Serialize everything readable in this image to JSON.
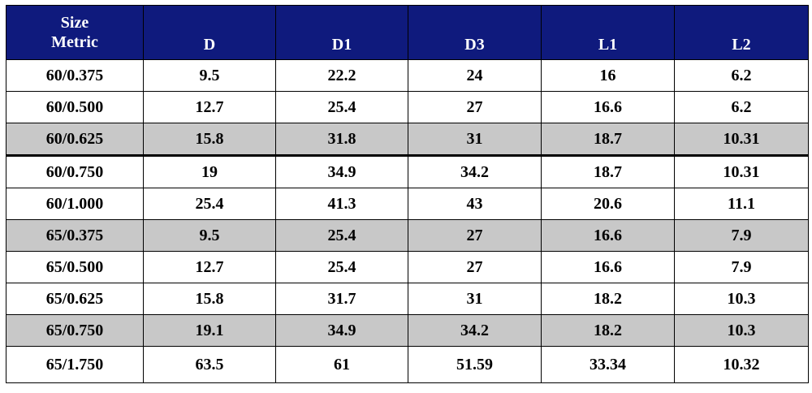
{
  "table": {
    "headers": [
      {
        "lines": [
          "Size",
          "Metric"
        ]
      },
      {
        "lines": [
          "D"
        ]
      },
      {
        "lines": [
          "D1"
        ]
      },
      {
        "lines": [
          "D3"
        ]
      },
      {
        "lines": [
          "L1"
        ]
      },
      {
        "lines": [
          "L2"
        ]
      }
    ],
    "rows": [
      {
        "cells": [
          "60/0.375",
          "9.5",
          "22.2",
          "24",
          "16",
          "6.2"
        ],
        "shaded": false
      },
      {
        "cells": [
          "60/0.500",
          "12.7",
          "25.4",
          "27",
          "16.6",
          "6.2"
        ],
        "shaded": false
      },
      {
        "cells": [
          "60/0.625",
          "15.8",
          "31.8",
          "31",
          "18.7",
          "10.31"
        ],
        "shaded": true
      },
      {
        "cells": [
          "60/0.750",
          "19",
          "34.9",
          "34.2",
          "18.7",
          "10.31"
        ],
        "shaded": false
      },
      {
        "cells": [
          "60/1.000",
          "25.4",
          "41.3",
          "43",
          "20.6",
          "11.1"
        ],
        "shaded": false
      },
      {
        "cells": [
          "65/0.375",
          "9.5",
          "25.4",
          "27",
          "16.6",
          "7.9"
        ],
        "shaded": true
      },
      {
        "cells": [
          "65/0.500",
          "12.7",
          "25.4",
          "27",
          "16.6",
          "7.9"
        ],
        "shaded": false
      },
      {
        "cells": [
          "65/0.625",
          "15.8",
          "31.7",
          "31",
          "18.2",
          "10.3"
        ],
        "shaded": false
      },
      {
        "cells": [
          "65/0.750",
          "19.1",
          "34.9",
          "34.2",
          "18.2",
          "10.3"
        ],
        "shaded": true
      },
      {
        "cells": [
          "65/1.750",
          "63.5",
          "61",
          "51.59",
          "33.34",
          "10.32"
        ],
        "shaded": false
      }
    ],
    "colors": {
      "header_bg": "#0f1a7d",
      "header_text": "#ffffff",
      "shade": "#c8c8c8"
    }
  }
}
